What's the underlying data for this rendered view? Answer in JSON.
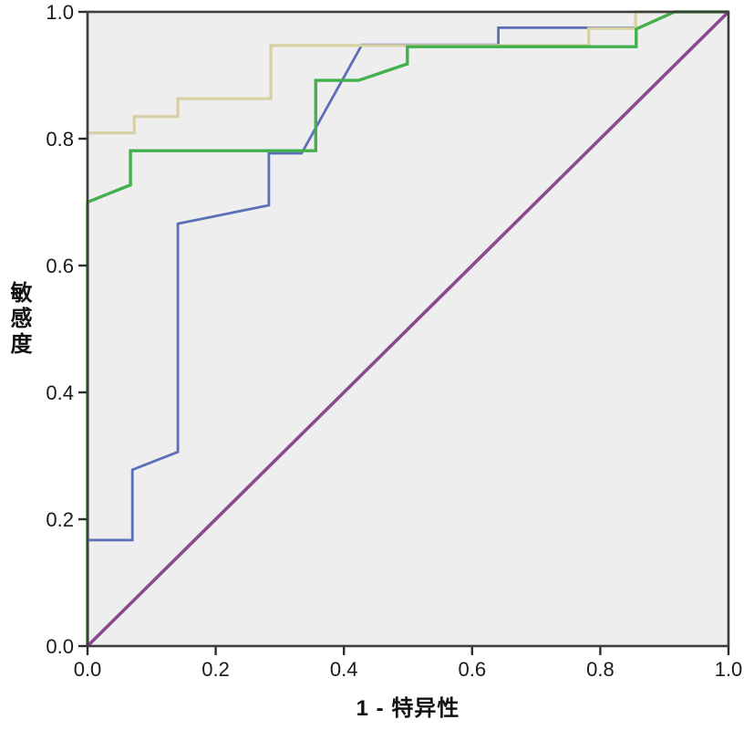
{
  "page": {
    "background": "#ffffff"
  },
  "chart_data": {
    "type": "line",
    "title": "",
    "xlabel": "1 - 特异性",
    "ylabel": "敏感度",
    "xlim": [
      0,
      1
    ],
    "ylim": [
      0,
      1
    ],
    "x_tick_values": [
      0.0,
      0.2,
      0.4,
      0.6,
      0.8,
      1.0
    ],
    "x_tick_labels": [
      "0.0",
      "0.2",
      "0.4",
      "0.6",
      "0.8",
      "1.0"
    ],
    "y_tick_values": [
      0.0,
      0.2,
      0.4,
      0.6,
      0.8,
      1.0
    ],
    "y_tick_labels": [
      "0.0",
      "0.2",
      "0.4",
      "0.6",
      "0.8",
      "1.0"
    ],
    "grid": false,
    "legend_position": "none",
    "plot_background": "#eeeeee",
    "frame_color": "#3e3e3e",
    "tick_color": "#2d2d2d",
    "label_color": "#1a1a1a",
    "series": [
      {
        "name": "blue-curve",
        "color": "#5b6fb8",
        "stroke_width": 2.8,
        "points": [
          [
            0,
            0
          ],
          [
            0,
            0.167
          ],
          [
            0.07,
            0.167
          ],
          [
            0.07,
            0.278
          ],
          [
            0.141,
            0.306
          ],
          [
            0.141,
            0.666
          ],
          [
            0.283,
            0.695
          ],
          [
            0.283,
            0.777
          ],
          [
            0.334,
            0.777
          ],
          [
            0.428,
            0.948
          ],
          [
            0.641,
            0.948
          ],
          [
            0.641,
            0.975
          ],
          [
            0.855,
            0.975
          ],
          [
            0.855,
            1.0
          ],
          [
            1.0,
            1.0
          ]
        ]
      },
      {
        "name": "tan-curve",
        "color": "#d6d0a2",
        "stroke_width": 3.2,
        "points": [
          [
            0,
            0
          ],
          [
            0,
            0.809
          ],
          [
            0.073,
            0.809
          ],
          [
            0.073,
            0.835
          ],
          [
            0.141,
            0.835
          ],
          [
            0.141,
            0.863
          ],
          [
            0.286,
            0.863
          ],
          [
            0.286,
            0.947
          ],
          [
            0.782,
            0.947
          ],
          [
            0.782,
            0.974
          ],
          [
            0.855,
            0.974
          ],
          [
            0.855,
            1.0
          ],
          [
            1.0,
            1.0
          ]
        ]
      },
      {
        "name": "green-curve",
        "color": "#42b04d",
        "stroke_width": 3.4,
        "points": [
          [
            0,
            0
          ],
          [
            0,
            0.7
          ],
          [
            0.067,
            0.727
          ],
          [
            0.067,
            0.781
          ],
          [
            0.356,
            0.781
          ],
          [
            0.356,
            0.892
          ],
          [
            0.423,
            0.892
          ],
          [
            0.499,
            0.918
          ],
          [
            0.499,
            0.945
          ],
          [
            0.856,
            0.945
          ],
          [
            0.856,
            0.973
          ],
          [
            0.916,
            1.0
          ],
          [
            1.0,
            1.0
          ]
        ]
      },
      {
        "name": "reference-line",
        "color": "#8b4a8f",
        "stroke_width": 3.6,
        "points": [
          [
            0,
            0
          ],
          [
            1.0,
            1.0
          ]
        ]
      }
    ]
  }
}
